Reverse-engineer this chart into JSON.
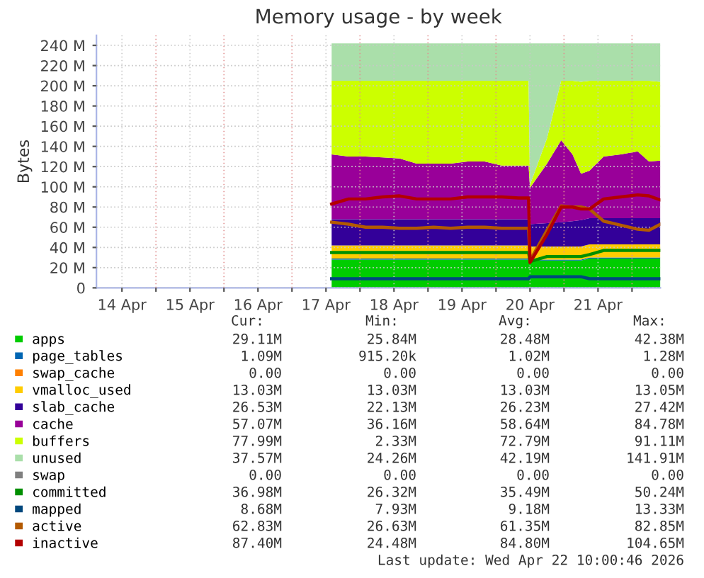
{
  "chart_data": {
    "type": "area",
    "stacked": true,
    "title": "Memory usage - by week",
    "ylabel": "Bytes",
    "x": [
      "2026-04-17T14:00",
      "2026-04-17T20:00",
      "2026-04-18T02:00",
      "2026-04-18T08:00",
      "2026-04-18T14:00",
      "2026-04-18T20:00",
      "2026-04-19T02:00",
      "2026-04-19T08:00",
      "2026-04-19T14:00",
      "2026-04-19T20:00",
      "2026-04-20T02:00",
      "2026-04-20T08:00",
      "2026-04-20T11:30",
      "2026-04-20T12:00",
      "2026-04-20T18:00",
      "2026-04-20T23:00",
      "2026-04-21T03:00",
      "2026-04-21T06:00",
      "2026-04-21T09:00",
      "2026-04-21T14:00",
      "2026-04-21T20:00",
      "2026-04-22T02:00",
      "2026-04-22T06:00",
      "2026-04-22T10:00"
    ],
    "xlim": [
      "2026-04-14T03:00",
      "2026-04-22T10:00"
    ],
    "xticks": [
      {
        "value": "2026-04-14T12:00",
        "label": "14 Apr"
      },
      {
        "value": "2026-04-15T12:00",
        "label": "15 Apr"
      },
      {
        "value": "2026-04-16T12:00",
        "label": "16 Apr"
      },
      {
        "value": "2026-04-17T12:00",
        "label": "17 Apr"
      },
      {
        "value": "2026-04-18T12:00",
        "label": "18 Apr"
      },
      {
        "value": "2026-04-19T12:00",
        "label": "19 Apr"
      },
      {
        "value": "2026-04-20T12:00",
        "label": "20 Apr"
      },
      {
        "value": "2026-04-21T12:00",
        "label": "21 Apr"
      },
      {
        "value": "2026-04-15T00:00",
        "label": null
      },
      {
        "value": "2026-04-16T00:00",
        "label": null
      },
      {
        "value": "2026-04-17T00:00",
        "label": null
      },
      {
        "value": "2026-04-18T00:00",
        "label": null
      },
      {
        "value": "2026-04-19T00:00",
        "label": null
      },
      {
        "value": "2026-04-20T00:00",
        "label": null
      },
      {
        "value": "2026-04-21T00:00",
        "label": null
      },
      {
        "value": "2026-04-22T00:00",
        "label": null
      }
    ],
    "ylim": [
      0,
      250
    ],
    "yticks": [
      0,
      {
        "value": 20,
        "label": "20 M"
      },
      {
        "value": 40,
        "label": "40 M"
      },
      {
        "value": 60,
        "label": "60 M"
      },
      {
        "value": 80,
        "label": "80 M"
      },
      {
        "value": 100,
        "label": "100 M"
      },
      {
        "value": 120,
        "label": "120 M"
      },
      {
        "value": 140,
        "label": "140 M"
      },
      {
        "value": 160,
        "label": "160 M"
      },
      {
        "value": 180,
        "label": "180 M"
      },
      {
        "value": 200,
        "label": "200 M"
      },
      {
        "value": 220,
        "label": "220 M"
      },
      {
        "value": 240,
        "label": "240 M"
      }
    ],
    "grid": true,
    "legend": "bottom",
    "series": [
      {
        "name": "apps",
        "color": "#00cc00",
        "values": [
          28,
          28,
          28,
          28,
          28,
          28,
          28,
          28,
          28,
          28,
          28,
          28,
          28,
          27,
          27,
          27,
          27,
          27,
          29,
          29,
          29,
          29,
          29,
          29
        ]
      },
      {
        "name": "page_tables",
        "color": "#0066b3",
        "values": [
          1,
          1,
          1,
          1,
          1,
          1,
          1,
          1,
          1,
          1,
          1,
          1,
          1,
          1,
          1,
          1,
          1,
          1,
          1,
          1,
          1,
          1,
          1,
          1
        ]
      },
      {
        "name": "swap_cache",
        "color": "#ff8000",
        "values": [
          null,
          null,
          null,
          null,
          null,
          null,
          null,
          null,
          null,
          null,
          null,
          null,
          null,
          null,
          null,
          null,
          null,
          null,
          null,
          null,
          null,
          null,
          null,
          null
        ]
      },
      {
        "name": "vmalloc_used",
        "color": "#ffcc00",
        "values": [
          13,
          13,
          13,
          13,
          13,
          13,
          13,
          13,
          13,
          13,
          13,
          13,
          13,
          13,
          13,
          13,
          13,
          13,
          13,
          13,
          13,
          13,
          13,
          13
        ]
      },
      {
        "name": "slab_cache",
        "color": "#330099",
        "values": [
          26,
          26,
          26,
          26,
          26,
          26,
          26,
          26,
          26,
          26,
          26,
          26,
          26,
          22,
          23,
          24,
          25,
          26,
          26,
          26,
          26,
          26,
          26,
          26
        ]
      },
      {
        "name": "cache",
        "color": "#990099",
        "values": [
          64,
          62,
          62,
          61,
          60,
          55,
          55,
          55,
          57,
          57,
          53,
          53,
          53,
          36,
          59,
          81,
          66,
          46,
          47,
          61,
          63,
          66,
          56,
          57
        ]
      },
      {
        "name": "buffers",
        "color": "#ccff00",
        "values": [
          73,
          75,
          75,
          76,
          77,
          82,
          82,
          82,
          80,
          80,
          84,
          84,
          84,
          3,
          25,
          59,
          73,
          91,
          89,
          75,
          73,
          70,
          80,
          78
        ]
      },
      {
        "name": "unused",
        "color": "#aadfaa",
        "values": [
          37,
          37,
          37,
          37,
          37,
          37,
          37,
          37,
          37,
          37,
          37,
          37,
          37,
          140,
          94,
          37,
          37,
          38,
          37,
          37,
          37,
          37,
          37,
          38
        ]
      },
      {
        "name": "swap",
        "color": "#808080",
        "type": "line",
        "values": [
          null,
          null,
          null,
          null,
          null,
          null,
          null,
          null,
          null,
          null,
          null,
          null,
          null,
          null,
          null,
          null,
          null,
          null,
          null,
          null,
          null,
          null,
          null,
          null
        ]
      },
      {
        "name": "committed",
        "color": "#008f00",
        "type": "line",
        "values": [
          35,
          35,
          35,
          35,
          35,
          35,
          35,
          35,
          35,
          35,
          35,
          35,
          35,
          26,
          31,
          31,
          31,
          31,
          33,
          37,
          37,
          37,
          37,
          37
        ]
      },
      {
        "name": "mapped",
        "color": "#00487d",
        "type": "line",
        "values": [
          9,
          9,
          9,
          9,
          9,
          9,
          9,
          9,
          9,
          9,
          9,
          9,
          9,
          11,
          11,
          11,
          11,
          11,
          9,
          9,
          9,
          9,
          9,
          9
        ]
      },
      {
        "name": "active",
        "color": "#b35a00",
        "type": "line",
        "values": [
          65,
          63,
          60,
          60,
          59,
          59,
          60,
          59,
          60,
          60,
          59,
          59,
          59,
          27,
          57,
          81,
          80,
          80,
          78,
          66,
          62,
          58,
          57,
          63
        ]
      },
      {
        "name": "inactive",
        "color": "#b30000",
        "type": "line",
        "values": [
          83,
          88,
          88,
          90,
          91,
          88,
          88,
          88,
          90,
          90,
          90,
          89,
          89,
          25,
          53,
          80,
          80,
          78,
          78,
          88,
          90,
          92,
          91,
          87
        ]
      }
    ],
    "annotations": [
      "Cur:",
      "Min:",
      "Avg:",
      "Max:",
      "29.11M",
      "25.84M",
      "28.48M",
      "42.38M",
      "1.09M",
      "915.20k",
      "1.02M",
      "1.28M",
      "0.00",
      "0.00",
      "0.00",
      "0.00",
      "13.03M",
      "13.03M",
      "13.03M",
      "13.05M",
      "26.53M",
      "22.13M",
      "26.23M",
      "27.42M",
      "57.07M",
      "36.16M",
      "58.64M",
      "84.78M",
      "77.99M",
      "2.33M",
      "72.79M",
      "91.11M",
      "37.57M",
      "24.26M",
      "42.19M",
      "141.91M",
      "0.00",
      "0.00",
      "0.00",
      "0.00",
      "36.98M",
      "26.32M",
      "35.49M",
      "50.24M",
      "8.68M",
      "7.93M",
      "9.18M",
      "13.33M",
      "62.83M",
      "26.63M",
      "61.35M",
      "82.85M",
      "87.40M",
      "24.48M",
      "84.80M",
      "104.65M",
      "Last update: Wed Apr 22 10:00:46 2026"
    ]
  }
}
